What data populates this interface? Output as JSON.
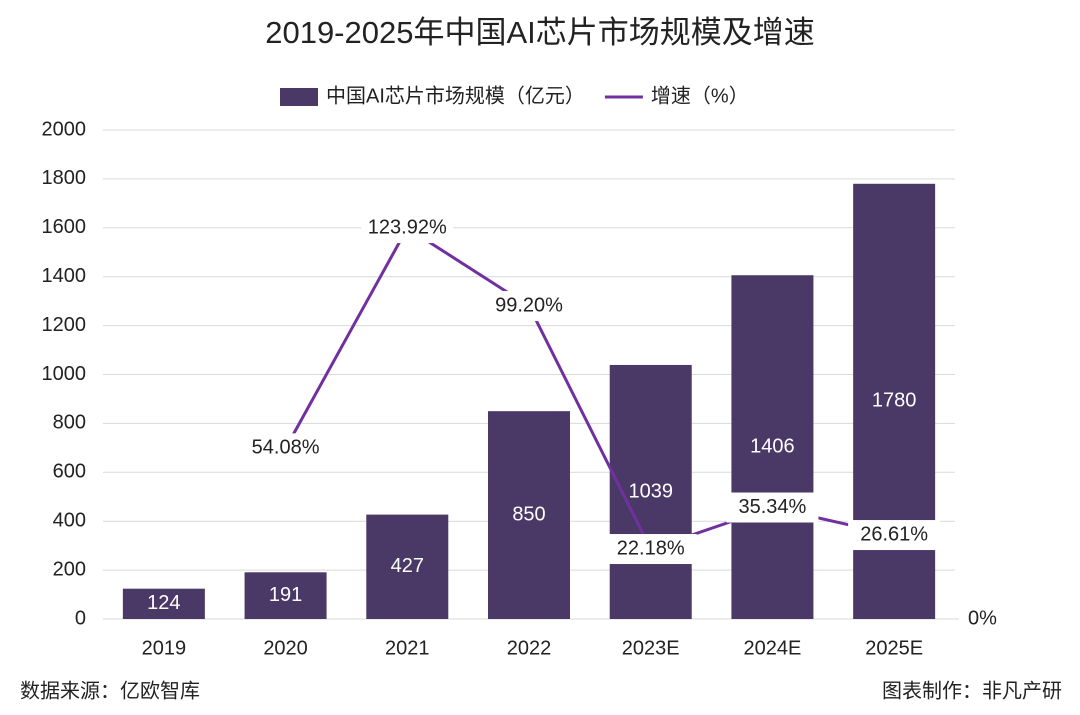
{
  "chart_data": {
    "type": "bar_line",
    "title": "2019-2025年中国AI芯片市场规模及增速",
    "categories": [
      "2019",
      "2020",
      "2021",
      "2022",
      "2023E",
      "2024E",
      "2025E"
    ],
    "series": [
      {
        "name": "中国AI芯片市场规模（亿元）",
        "type": "bar",
        "color": "#4a3867",
        "values": [
          124,
          191,
          427,
          850,
          1039,
          1406,
          1780
        ]
      },
      {
        "name": "增速（%）",
        "type": "line",
        "axis": "y2",
        "color": "#7030a0",
        "values": [
          null,
          54.08,
          123.92,
          99.2,
          22.18,
          35.34,
          26.61
        ],
        "value_labels": [
          null,
          "54.08%",
          "123.92%",
          "99.20%",
          "22.18%",
          "35.34%",
          "26.61%"
        ]
      }
    ],
    "ylim": [
      0,
      2000
    ],
    "yticks": [
      0,
      200,
      400,
      600,
      800,
      1000,
      1200,
      1400,
      1600,
      1800,
      2000
    ],
    "y2lim": [
      0,
      155
    ],
    "y2ticks": [
      {
        "value": 0,
        "label": "0%"
      }
    ],
    "grid": true,
    "legend": "top",
    "source": "数据来源：亿欧智库",
    "credit": "图表制作：非凡产研"
  }
}
